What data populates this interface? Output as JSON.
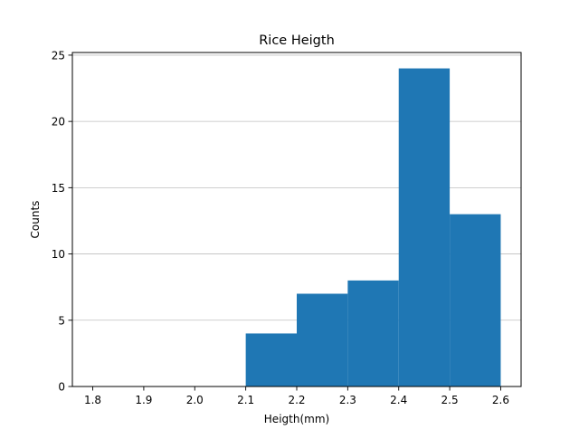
{
  "chart_data": {
    "type": "bar",
    "title": "Rice Heigth",
    "xlabel": "Heigth(mm)",
    "ylabel": "Counts",
    "xlim": [
      1.76,
      2.64
    ],
    "ylim": [
      0,
      25.2
    ],
    "x_ticks": [
      "1.8",
      "1.9",
      "2.0",
      "2.1",
      "2.2",
      "2.3",
      "2.4",
      "2.5",
      "2.6"
    ],
    "y_ticks": [
      "0",
      "5",
      "10",
      "15",
      "20",
      "25"
    ],
    "grid": "horizontal",
    "bins": [
      {
        "start": 2.1,
        "end": 2.2,
        "count": 4
      },
      {
        "start": 2.2,
        "end": 2.3,
        "count": 7
      },
      {
        "start": 2.3,
        "end": 2.4,
        "count": 8
      },
      {
        "start": 2.4,
        "end": 2.5,
        "count": 24
      },
      {
        "start": 2.5,
        "end": 2.6,
        "count": 13
      }
    ],
    "bar_color": "#1f77b4",
    "grid_color": "#bfbfbf"
  }
}
